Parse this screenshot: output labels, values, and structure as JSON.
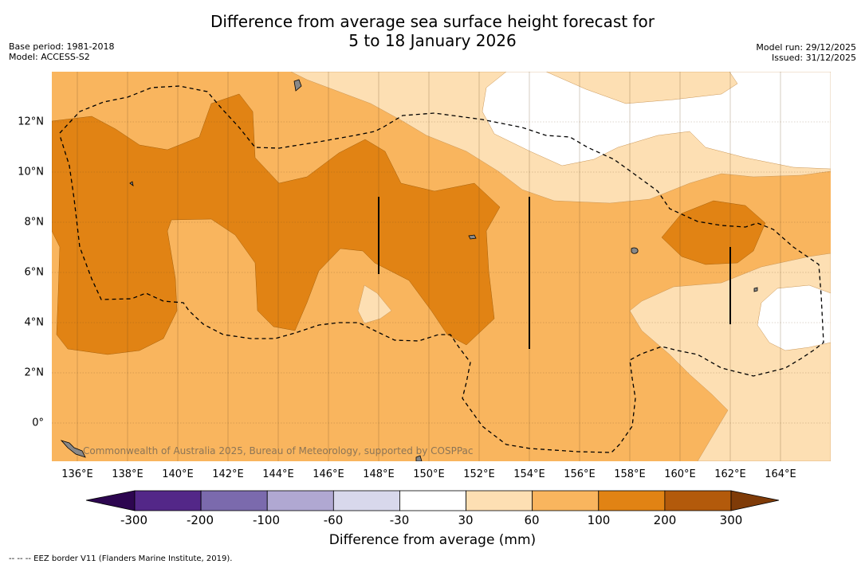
{
  "title": {
    "line1": "Difference from average sea surface height forecast for",
    "line2": "5 to 18 January 2026"
  },
  "meta_left": {
    "base_period": "Base period: 1981-2018",
    "model": "Model: ACCESS-S2"
  },
  "meta_right": {
    "model_run": "Model run: 29/12/2025",
    "issued": "Issued: 31/12/2025"
  },
  "map": {
    "latitude_labels": [
      "12°N",
      "10°N",
      "8°N",
      "6°N",
      "4°N",
      "2°N",
      "0°"
    ],
    "longitude_labels": [
      "136°E",
      "138°E",
      "140°E",
      "142°E",
      "144°E",
      "146°E",
      "148°E",
      "150°E",
      "152°E",
      "154°E",
      "156°E",
      "158°E",
      "160°E",
      "162°E",
      "164°E"
    ],
    "credit": "Commonwealth of Australia 2025, Bureau of Meteorology, supported by COSPPac"
  },
  "colorbar": {
    "ticks": [
      "-300",
      "-200",
      "-100",
      "-60",
      "-30",
      "30",
      "60",
      "100",
      "200",
      "300"
    ],
    "colors": [
      "#532788",
      "#7b6aad",
      "#b0a8d2",
      "#d8d8ec",
      "#ffffff",
      "#fddfb3",
      "#f9b55e",
      "#e18314",
      "#b35a0b"
    ],
    "under_color": "#2d0650",
    "over_color": "#7f3b08",
    "label": "Difference from average (mm)"
  },
  "footer": "--  --  -- EEZ border V11 (Flanders Marine Institute, 2019)."
}
